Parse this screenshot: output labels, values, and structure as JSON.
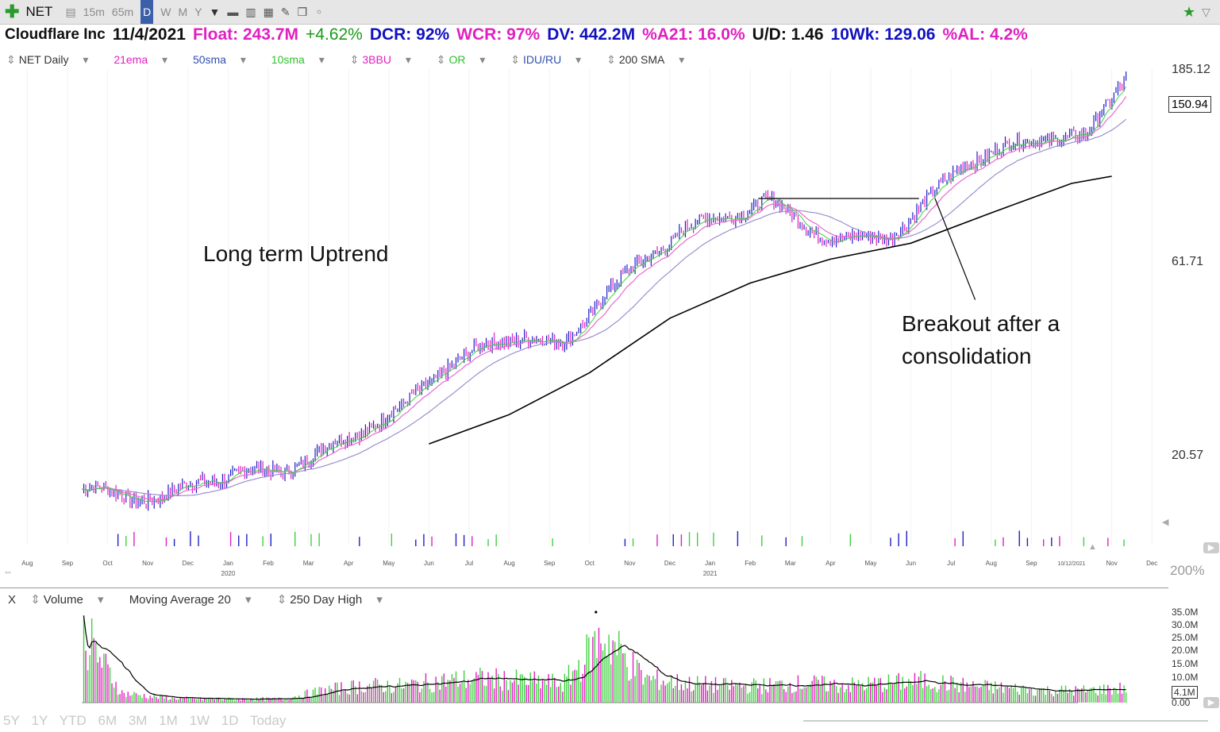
{
  "toolbar": {
    "symbol": "NET",
    "intervals": [
      "15m",
      "65m",
      "D",
      "W",
      "M",
      "Y"
    ],
    "active_interval": "D",
    "icons": [
      "add-symbol-icon",
      "dropdown-icon",
      "chart-type-icon",
      "bar-icon",
      "grid-icon",
      "pencil-icon",
      "notes-icon",
      "star-icon"
    ]
  },
  "info": {
    "company": "Cloudflare Inc",
    "date": "11/4/2021",
    "float": "Float: 243.7M",
    "change": "+4.62%",
    "dcr": "DCR: 92%",
    "wcr": "WCR: 97%",
    "dv": "DV: 442.2M",
    "a21": "%A21: 16.0%",
    "ud": "U/D: 1.46",
    "wk10": "10Wk: 129.06",
    "al": "%AL: 4.2%"
  },
  "indicators": {
    "chart": "NET Daily",
    "items": [
      "21ema",
      "50sma",
      "10sma",
      "3BBU",
      "OR",
      "IDU/RU",
      "200 SMA"
    ]
  },
  "colors": {
    "up": "#1f1fc8",
    "down": "#e020c0",
    "ema21": "#e86ad0",
    "sma50": "#9a90d0",
    "sma10": "#40d040",
    "sma200": "#000000",
    "vol_up": "#40d040",
    "vol_down": "#e020c0",
    "magenta": "#e020c0",
    "blue": "#1010c0"
  },
  "annotations": {
    "left": "Long term Uptrend",
    "right_line1": "Breakout after a",
    "right_line2": "consolidation"
  },
  "chart_data": [
    {
      "type": "line",
      "title": "NET Daily",
      "y_scale": "log",
      "y_ticks": [
        "185.12",
        "61.71",
        "20.57"
      ],
      "last_price": "150.94",
      "x_labels": [
        "Aug",
        "Sep",
        "Oct",
        "Nov",
        "Dec",
        "Jan",
        "Feb",
        "Mar",
        "Apr",
        "May",
        "Jun",
        "Jul",
        "Aug",
        "Sep",
        "Oct",
        "Nov",
        "Dec",
        "Jan",
        "Feb",
        "Mar",
        "Apr",
        "May",
        "Jun",
        "Jul",
        "Aug",
        "Sep",
        "10/12/2021",
        "Nov",
        "Dec"
      ],
      "year_labels": [
        "2020",
        "2021"
      ],
      "zoom": "200%",
      "series": [
        {
          "name": "NET Daily",
          "x": [
            "2019-09",
            "2019-10",
            "2019-11",
            "2019-12",
            "2020-01",
            "2020-02",
            "2020-03",
            "2020-04",
            "2020-05",
            "2020-06",
            "2020-07",
            "2020-08",
            "2020-09",
            "2020-10",
            "2020-11",
            "2020-12",
            "2021-01",
            "2021-02",
            "2021-03",
            "2021-04",
            "2021-05",
            "2021-06",
            "2021-07",
            "2021-08",
            "2021-09",
            "2021-10",
            "2021-11"
          ],
          "values": [
            17.0,
            16.5,
            16.0,
            18.0,
            18.5,
            19.0,
            21.0,
            24.0,
            27.0,
            34.0,
            38.0,
            41.0,
            38.0,
            52.0,
            62.0,
            76.0,
            79.0,
            89.0,
            76.0,
            70.0,
            71.0,
            86.0,
            110.0,
            118.0,
            127.0,
            125.0,
            182.0
          ]
        },
        {
          "name": "200 SMA",
          "x": [
            "2020-06",
            "2020-08",
            "2020-10",
            "2020-12",
            "2021-02",
            "2021-04",
            "2021-06",
            "2021-08",
            "2021-10",
            "2021-11"
          ],
          "values": [
            22.0,
            26.0,
            33.0,
            45.0,
            55.0,
            63.0,
            69.0,
            82.0,
            97.0,
            101.0
          ]
        }
      ]
    },
    {
      "type": "bar",
      "title": "Volume",
      "y_ticks": [
        "35.0M",
        "30.0M",
        "25.0M",
        "20.0M",
        "15.0M",
        "10.0M",
        "4.1M",
        "0.00"
      ],
      "legend": [
        "Volume",
        "Moving Average 20",
        "250 Day High"
      ],
      "categories": [
        "2019-09",
        "2019-10",
        "2019-11",
        "2019-12",
        "2020-01",
        "2020-02",
        "2020-03",
        "2020-04",
        "2020-05",
        "2020-06",
        "2020-07",
        "2020-08",
        "2020-09",
        "2020-10",
        "2020-11",
        "2020-12",
        "2021-01",
        "2021-02",
        "2021-03",
        "2021-04",
        "2021-05",
        "2021-06",
        "2021-07",
        "2021-08",
        "2021-09",
        "2021-10",
        "2021-11"
      ],
      "values": [
        30,
        4,
        2,
        1.5,
        1.5,
        1.5,
        5,
        7,
        7,
        9,
        10,
        9,
        8,
        28,
        10,
        8,
        7,
        7,
        8,
        7,
        8,
        9,
        7,
        6,
        5,
        5,
        6
      ],
      "ylim": [
        0,
        35
      ]
    }
  ],
  "bottom": {
    "ranges": [
      "5Y",
      "1Y",
      "YTD",
      "6M",
      "3M",
      "1M",
      "1W",
      "1D",
      "Today"
    ]
  }
}
